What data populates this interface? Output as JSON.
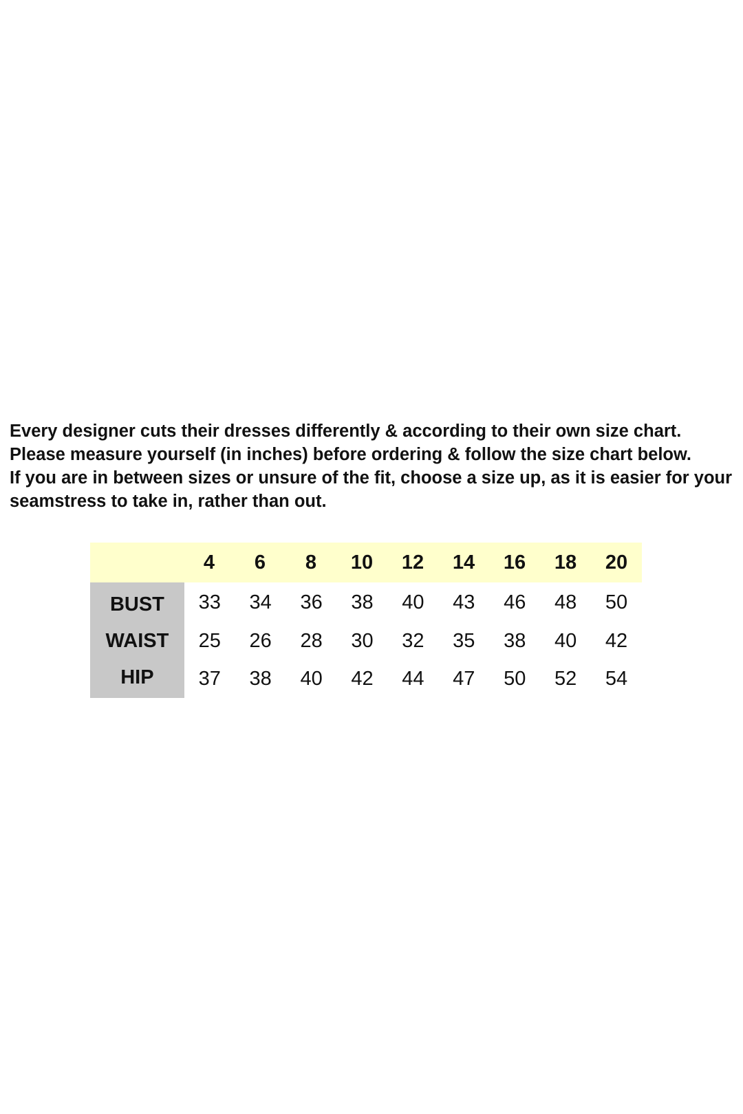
{
  "intro": {
    "paragraph1": "Every designer cuts their dresses differently & according to their own size chart. Please measure yourself (in inches) before ordering & follow the size chart below.",
    "paragraph2": "If you are in between sizes or unsure of the fit, choose a size up, as it is easier for your seamstress to take in, rather than out."
  },
  "size_chart": {
    "header_color": "#ffffcc",
    "label_color": "#c8c8c8",
    "sizes": [
      "4",
      "6",
      "8",
      "10",
      "12",
      "14",
      "16",
      "18",
      "20"
    ],
    "rows": [
      {
        "label": "BUST",
        "values": [
          "33",
          "34",
          "36",
          "38",
          "40",
          "43",
          "46",
          "48",
          "50"
        ]
      },
      {
        "label": "WAIST",
        "values": [
          "25",
          "26",
          "28",
          "30",
          "32",
          "35",
          "38",
          "40",
          "42"
        ]
      },
      {
        "label": "HIP",
        "values": [
          "37",
          "38",
          "40",
          "42",
          "44",
          "47",
          "50",
          "52",
          "54"
        ]
      }
    ]
  }
}
